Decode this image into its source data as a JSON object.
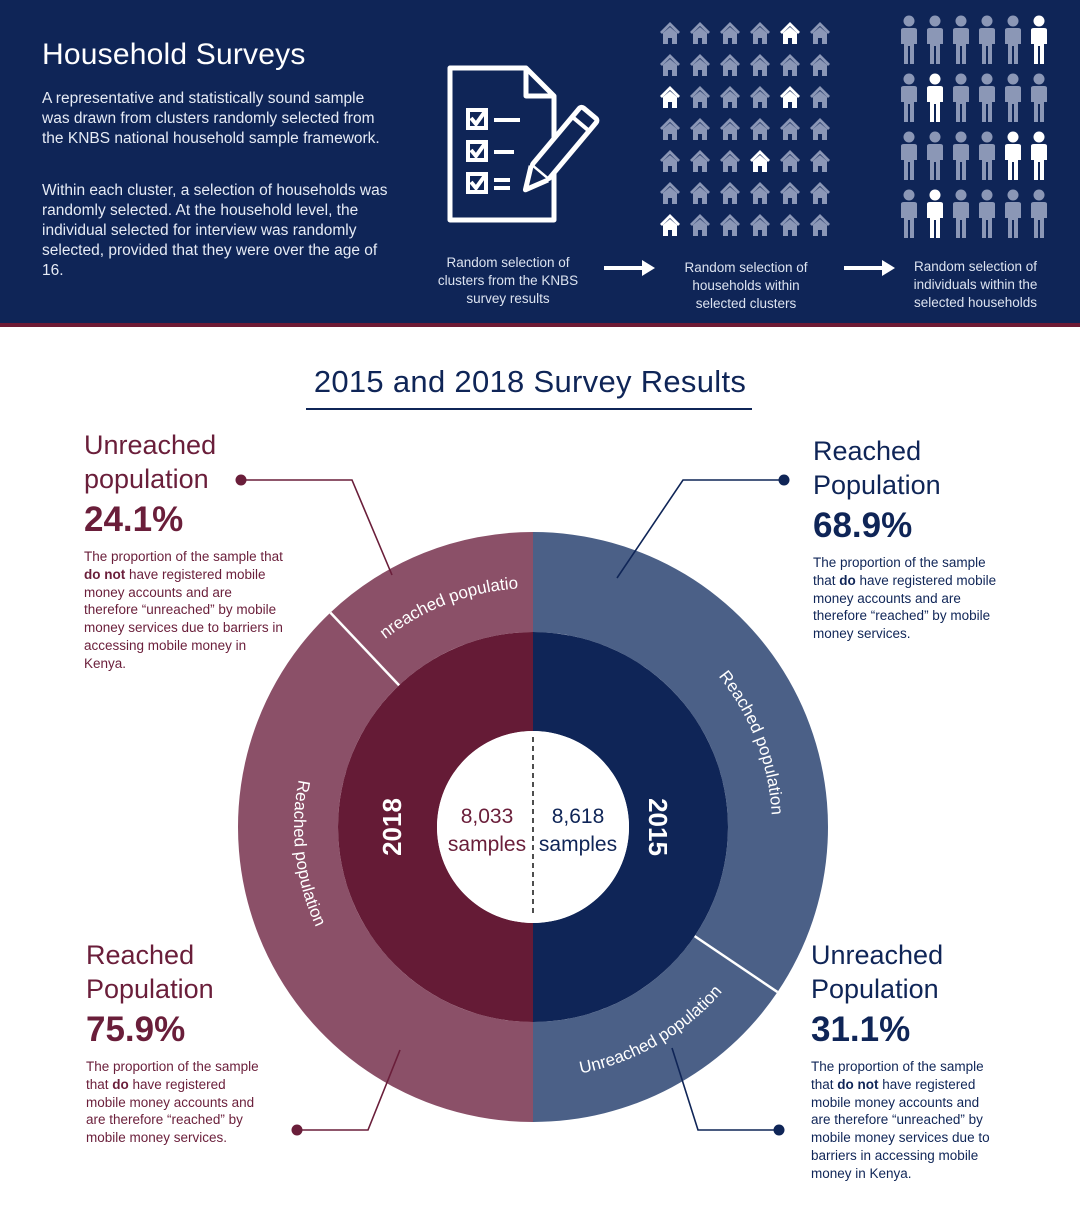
{
  "banner": {
    "title": "Household Surveys",
    "para1": "A representative and statistically sound sample was drawn from clusters randomly selected from the KNBS national household sample framework.",
    "para2": "Within each cluster, a selection of households was randomly selected. At the household level, the individual selected for interview was randomly selected, provided that they were over the age of 16.",
    "steps": [
      {
        "label": "Random selection of clusters from the KNBS survey results",
        "icon": "survey-checklist-icon"
      },
      {
        "label": "Random selection of households within selected clusters",
        "icon": "house-grid-icon"
      },
      {
        "label": "Random selection of individuals within the selected households",
        "icon": "people-grid-icon"
      }
    ],
    "colors": {
      "background": "#0f2557",
      "icon": "#8b97b6",
      "highlight": "#ffffff",
      "accent_rule": "#6e1b35"
    }
  },
  "results": {
    "title": "2015 and 2018 Survey Results"
  },
  "callouts": {
    "unreached_2018": {
      "label_line1": "Unreached",
      "label_line2": "population",
      "pct": "24.1%",
      "desc_pre": "The proportion of the sample that ",
      "desc_bold": "do not",
      "desc_post": " have registered mobile money accounts and are therefore “unreached” by mobile money services due to barriers in accessing mobile money in Kenya."
    },
    "reached_2018": {
      "label_line1": "Reached",
      "label_line2": "Population",
      "pct": "75.9%",
      "desc_pre": "The proportion of the sample that ",
      "desc_bold": "do",
      "desc_post": " have registered mobile money accounts and are therefore “reached” by mobile money services."
    },
    "reached_2015": {
      "label_line1": "Reached",
      "label_line2": "Population",
      "pct": "68.9%",
      "desc_pre": "The proportion of the sample that ",
      "desc_bold": "do",
      "desc_post": " have registered mobile money accounts and are therefore “reached” by mobile money services."
    },
    "unreached_2015": {
      "label_line1": "Unreached",
      "label_line2": "Population",
      "pct": "31.1%",
      "desc_pre": "The proportion of the sample that ",
      "desc_bold": "do not",
      "desc_post": " have registered mobile money accounts and are therefore “unreached” by mobile money services due to barriers in accessing mobile money in Kenya."
    }
  },
  "chart_data": {
    "type": "pie",
    "title": "2015 and 2018 Survey Results",
    "layout": "two half-donuts, 2018 on the left half, 2015 on the right half",
    "halves": [
      {
        "year": "2018",
        "side": "left",
        "samples_value": "8,033",
        "samples_label": "samples",
        "segments": [
          {
            "name": "Unreached population",
            "value": 24.1,
            "color": "#8b5068"
          },
          {
            "name": "Reached population",
            "value": 75.9,
            "color": "#8b5068"
          }
        ],
        "inner_color": "#651b36"
      },
      {
        "year": "2015",
        "side": "right",
        "samples_value": "8,618",
        "samples_label": "samples",
        "segments": [
          {
            "name": "Reached population",
            "value": 68.9,
            "color": "#4b6087"
          },
          {
            "name": "Unreached population",
            "value": 31.1,
            "color": "#4b6087"
          }
        ],
        "inner_color": "#0f2557"
      }
    ],
    "colors": {
      "maroon_text": "#6a1e3a",
      "navy_text": "#0f2557",
      "leader_maroon": "#6a1e3a",
      "leader_navy": "#0f2557"
    }
  }
}
